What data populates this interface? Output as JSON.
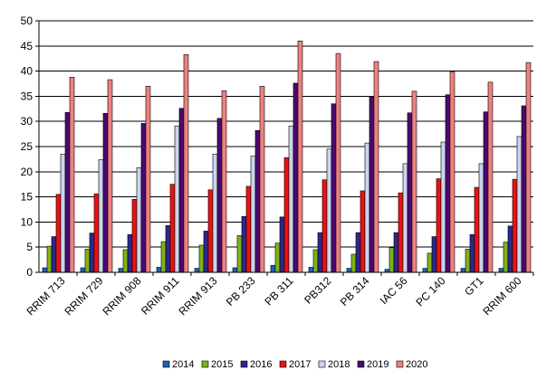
{
  "chart_data": {
    "type": "bar",
    "title": "",
    "xlabel": "",
    "ylabel": "",
    "ylim": [
      0,
      50
    ],
    "yticks": [
      0,
      5,
      10,
      15,
      20,
      25,
      30,
      35,
      40,
      45,
      50
    ],
    "grid": "horizontal",
    "legend": "bottom",
    "categories": [
      "RRIM 713",
      "RRIM 729",
      "RRIM 908",
      "RRIM 911",
      "RRIM 913",
      "PB 233",
      "PB 311",
      "PB312",
      "PB 314",
      "IAC 56",
      "PC 140",
      "GT1",
      "RRIM 600"
    ],
    "series": [
      {
        "name": "2014",
        "color": "#1f5fbf",
        "values": [
          0.9,
          0.9,
          0.8,
          1.0,
          0.8,
          0.9,
          1.4,
          1.0,
          0.8,
          0.6,
          0.8,
          0.8,
          0.8
        ]
      },
      {
        "name": "2015",
        "color": "#7fb317",
        "values": [
          5.2,
          4.6,
          4.5,
          6.1,
          5.4,
          7.3,
          5.8,
          4.5,
          3.6,
          4.9,
          3.8,
          4.6,
          6.0
        ]
      },
      {
        "name": "2016",
        "color": "#2a2a8c",
        "values": [
          7.1,
          7.8,
          7.5,
          9.3,
          8.2,
          11.1,
          11.0,
          7.9,
          7.9,
          7.9,
          7.1,
          7.5,
          9.2
        ]
      },
      {
        "name": "2017",
        "color": "#ee1111",
        "values": [
          15.5,
          15.6,
          14.5,
          17.5,
          16.4,
          17.1,
          22.8,
          18.4,
          16.2,
          15.8,
          18.6,
          16.9,
          18.5
        ]
      },
      {
        "name": "2018",
        "color": "#c9d4f0",
        "values": [
          23.5,
          22.4,
          20.8,
          29.1,
          23.5,
          23.1,
          29.1,
          24.5,
          25.7,
          21.6,
          25.9,
          21.6,
          27.0
        ]
      },
      {
        "name": "2019",
        "color": "#4b0a6e",
        "values": [
          31.8,
          31.6,
          29.6,
          32.6,
          30.6,
          28.2,
          37.6,
          33.5,
          34.9,
          31.7,
          35.3,
          31.9,
          33.1
        ]
      },
      {
        "name": "2020",
        "color": "#f08080",
        "values": [
          38.8,
          38.3,
          37.0,
          43.3,
          36.1,
          37.0,
          46.0,
          43.5,
          41.9,
          36.0,
          39.9,
          37.8,
          41.7
        ]
      }
    ]
  }
}
